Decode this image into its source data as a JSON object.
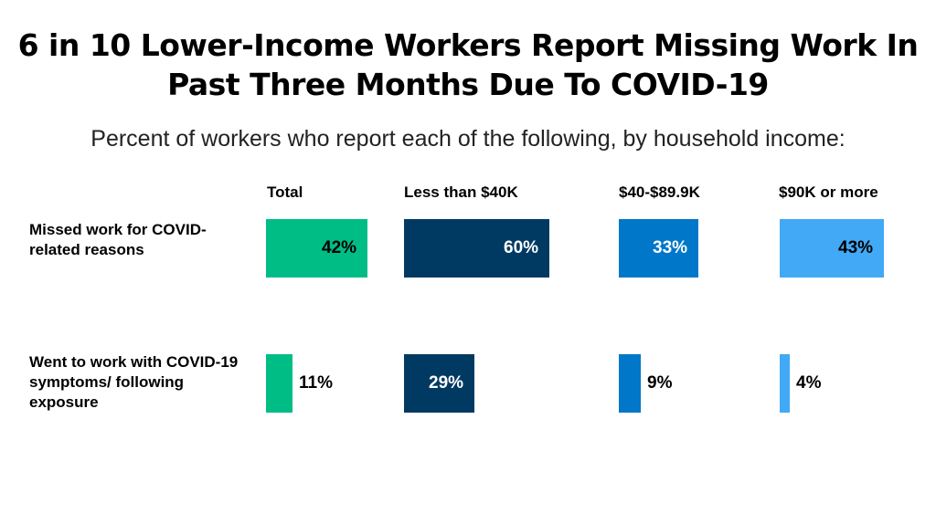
{
  "chart_data": {
    "type": "bar",
    "title": "6 in 10 Lower-Income Workers Report Missing Work In Past Three Months Due To COVID-19",
    "subtitle": "Percent of workers who report each of the following, by household income:",
    "groups": [
      "Total",
      "Less than $40K",
      "$40-$89.9K",
      "$90K or more"
    ],
    "categories": [
      "Missed work for COVID-related reasons",
      "Went to work with COVID-19 symptoms/ following exposure"
    ],
    "series": [
      {
        "name": "Total",
        "color": "#00bd86",
        "values": [
          42,
          11
        ]
      },
      {
        "name": "Less than $40K",
        "color": "#003a63",
        "values": [
          60,
          29
        ]
      },
      {
        "name": "$40-$89.9K",
        "color": "#0077c8",
        "values": [
          33,
          9
        ]
      },
      {
        "name": "$90K or more",
        "color": "#41a9f5",
        "values": [
          43,
          4
        ]
      }
    ],
    "value_labels": [
      [
        "42%",
        "11%"
      ],
      [
        "60%",
        "29%"
      ],
      [
        "33%",
        "9%"
      ],
      [
        "43%",
        "4%"
      ]
    ],
    "value_unit": "%",
    "xlim": [
      0,
      60
    ],
    "grid": false,
    "legend": "none"
  }
}
